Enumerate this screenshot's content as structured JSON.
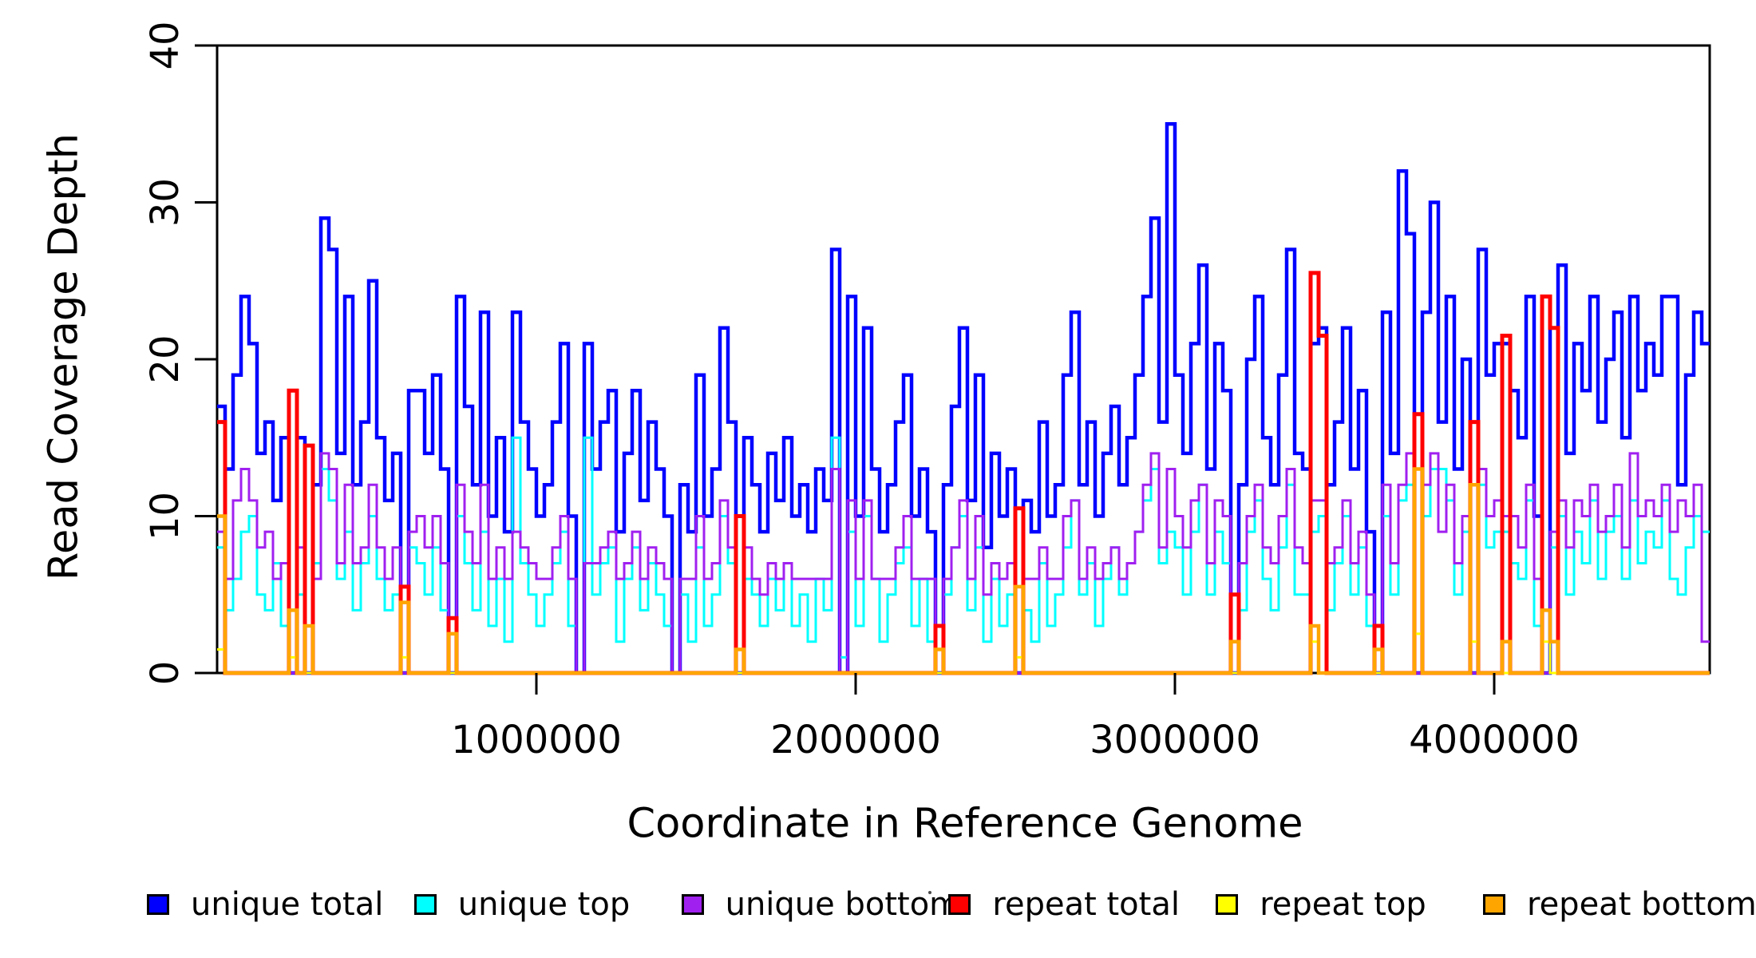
{
  "figure": {
    "y_axis": {
      "label": "Read Coverage Depth",
      "ticks": [
        0,
        10,
        20,
        30,
        40
      ],
      "tick_labels": [
        "0",
        "10",
        "20",
        "30",
        "40"
      ]
    },
    "x_axis": {
      "label": "Coordinate in Reference Genome",
      "ticks": [
        1000000,
        2000000,
        3000000,
        4000000
      ],
      "tick_labels": [
        "1000000",
        "2000000",
        "3000000",
        "4000000"
      ]
    },
    "legend": {
      "items": [
        {
          "label": "unique total",
          "color": "#0000FF"
        },
        {
          "label": "unique top",
          "color": "#00FFFF"
        },
        {
          "label": "unique bottom",
          "color": "#A020F0"
        },
        {
          "label": "repeat total",
          "color": "#FF0000"
        },
        {
          "label": "repeat top",
          "color": "#FFFF00"
        },
        {
          "label": "repeat bottom",
          "color": "#FFA500"
        }
      ]
    },
    "colors": {
      "axis": "#000000",
      "background": "#ffffff"
    }
  },
  "chart_data": {
    "type": "line",
    "step": true,
    "title": "",
    "xlabel": "Coordinate in Reference Genome",
    "ylabel": "Read Coverage Depth",
    "xlim": [
      0,
      4675000
    ],
    "ylim": [
      0,
      40
    ],
    "x_ticks": [
      1000000,
      2000000,
      3000000,
      4000000
    ],
    "y_ticks": [
      0,
      10,
      20,
      30,
      40
    ],
    "grid": false,
    "legend_position": "bottom",
    "n_bins": 187,
    "bin_size": 25000,
    "x_start": 0,
    "series": [
      {
        "name": "unique total",
        "color": "#0000FF",
        "line_width": 4.5,
        "values": [
          17,
          13,
          19,
          24,
          21,
          14,
          16,
          11,
          15,
          0,
          15,
          0,
          12,
          29,
          27,
          14,
          24,
          12,
          16,
          25,
          15,
          11,
          14,
          0,
          18,
          18,
          14,
          19,
          13,
          0,
          24,
          17,
          12,
          23,
          10,
          15,
          9,
          23,
          16,
          13,
          10,
          12,
          16,
          21,
          10,
          0,
          21,
          13,
          16,
          18,
          9,
          14,
          18,
          11,
          16,
          13,
          10,
          0,
          12,
          9,
          19,
          10,
          13,
          22,
          16,
          0,
          15,
          12,
          9,
          14,
          11,
          15,
          10,
          12,
          9,
          13,
          11,
          27,
          0,
          24,
          10,
          22,
          13,
          9,
          12,
          16,
          19,
          10,
          13,
          9,
          0,
          12,
          17,
          22,
          11,
          19,
          8,
          14,
          10,
          13,
          0,
          11,
          9,
          16,
          10,
          12,
          19,
          23,
          12,
          16,
          10,
          14,
          17,
          12,
          15,
          19,
          24,
          29,
          16,
          35,
          19,
          14,
          21,
          26,
          13,
          21,
          18,
          0,
          12,
          20,
          24,
          15,
          12,
          19,
          27,
          14,
          13,
          21,
          22,
          12,
          16,
          22,
          13,
          18,
          9,
          0,
          23,
          14,
          32,
          28,
          0,
          23,
          30,
          16,
          24,
          13,
          20,
          0,
          27,
          19,
          21,
          21,
          18,
          15,
          24,
          10,
          0,
          22,
          26,
          14,
          21,
          18,
          24,
          16,
          20,
          23,
          15,
          24,
          18,
          21,
          19,
          24,
          24,
          12,
          19,
          23,
          21
        ]
      },
      {
        "name": "unique top",
        "color": "#00FFFF",
        "line_width": 3,
        "values": [
          8,
          4,
          6,
          9,
          10,
          5,
          4,
          7,
          3,
          0,
          5,
          0,
          7,
          13,
          11,
          6,
          9,
          4,
          7,
          10,
          6,
          4,
          5,
          0,
          8,
          7,
          5,
          8,
          4,
          0,
          10,
          7,
          4,
          9,
          3,
          6,
          2,
          15,
          7,
          5,
          3,
          5,
          7,
          9,
          3,
          0,
          15,
          5,
          7,
          8,
          2,
          6,
          8,
          4,
          7,
          5,
          3,
          0,
          5,
          2,
          8,
          3,
          5,
          10,
          7,
          0,
          6,
          5,
          3,
          6,
          4,
          7,
          3,
          5,
          2,
          6,
          4,
          15,
          1,
          9,
          3,
          10,
          6,
          2,
          5,
          7,
          8,
          3,
          6,
          2,
          0,
          5,
          8,
          10,
          4,
          8,
          2,
          6,
          3,
          5,
          0,
          4,
          2,
          7,
          3,
          5,
          8,
          11,
          5,
          7,
          3,
          6,
          8,
          5,
          7,
          9,
          11,
          13,
          7,
          9,
          8,
          5,
          9,
          12,
          5,
          9,
          7,
          0,
          4,
          9,
          11,
          6,
          4,
          8,
          12,
          5,
          5,
          9,
          10,
          4,
          7,
          10,
          5,
          8,
          3,
          0,
          10,
          5,
          11,
          12,
          0,
          10,
          13,
          13,
          11,
          5,
          9,
          0,
          12,
          8,
          9,
          9,
          7,
          6,
          11,
          3,
          0,
          8,
          10,
          5,
          9,
          7,
          11,
          6,
          9,
          10,
          6,
          11,
          7,
          9,
          8,
          11,
          6,
          5,
          8,
          10,
          9
        ]
      },
      {
        "name": "unique bottom",
        "color": "#A020F0",
        "line_width": 3,
        "values": [
          9,
          6,
          11,
          13,
          11,
          8,
          9,
          6,
          7,
          0,
          8,
          0,
          6,
          14,
          13,
          7,
          12,
          7,
          8,
          12,
          8,
          6,
          8,
          0,
          9,
          10,
          8,
          10,
          7,
          0,
          12,
          9,
          7,
          12,
          6,
          8,
          6,
          9,
          8,
          7,
          6,
          6,
          8,
          10,
          6,
          0,
          7,
          7,
          8,
          9,
          6,
          7,
          9,
          6,
          8,
          7,
          6,
          0,
          6,
          6,
          10,
          6,
          7,
          11,
          8,
          0,
          8,
          6,
          5,
          7,
          6,
          7,
          6,
          6,
          6,
          6,
          6,
          13,
          0,
          11,
          6,
          11,
          6,
          6,
          6,
          8,
          10,
          6,
          6,
          6,
          0,
          6,
          8,
          11,
          6,
          10,
          5,
          7,
          6,
          7,
          0,
          6,
          6,
          8,
          6,
          6,
          10,
          11,
          6,
          8,
          6,
          7,
          8,
          6,
          7,
          9,
          12,
          14,
          8,
          13,
          10,
          8,
          11,
          12,
          7,
          11,
          10,
          0,
          7,
          10,
          12,
          8,
          7,
          10,
          13,
          8,
          7,
          11,
          11,
          7,
          8,
          11,
          7,
          9,
          5,
          0,
          12,
          7,
          12,
          14,
          0,
          12,
          14,
          9,
          12,
          7,
          10,
          0,
          13,
          10,
          11,
          10,
          10,
          8,
          12,
          6,
          0,
          9,
          11,
          8,
          11,
          10,
          12,
          9,
          10,
          12,
          8,
          14,
          10,
          11,
          10,
          12,
          9,
          11,
          10,
          12,
          2
        ]
      },
      {
        "name": "repeat total",
        "color": "#FF0000",
        "line_width": 5,
        "baseline": 0,
        "spikes": [
          [
            0,
            16
          ],
          [
            9,
            18
          ],
          [
            11,
            14.5
          ],
          [
            23,
            5.5
          ],
          [
            29,
            3.5
          ],
          [
            65,
            10
          ],
          [
            90,
            3
          ],
          [
            100,
            10.5
          ],
          [
            127,
            5
          ],
          [
            137,
            25.5
          ],
          [
            138,
            21.5
          ],
          [
            145,
            3
          ],
          [
            150,
            16.5
          ],
          [
            157,
            16
          ],
          [
            161,
            21.5
          ],
          [
            166,
            24
          ],
          [
            167,
            22
          ]
        ]
      },
      {
        "name": "repeat top",
        "color": "#FFFF00",
        "line_width": 3,
        "baseline": 0,
        "spikes": [
          [
            0,
            1.5
          ],
          [
            9,
            1
          ],
          [
            23,
            1
          ],
          [
            100,
            1
          ],
          [
            137,
            2
          ],
          [
            150,
            2.5
          ],
          [
            157,
            2
          ],
          [
            166,
            2
          ]
        ]
      },
      {
        "name": "repeat bottom",
        "color": "#FFA500",
        "line_width": 4.5,
        "baseline": 0,
        "spikes": [
          [
            0,
            10
          ],
          [
            9,
            4
          ],
          [
            11,
            3
          ],
          [
            23,
            4.5
          ],
          [
            29,
            2.5
          ],
          [
            65,
            1.5
          ],
          [
            90,
            1.5
          ],
          [
            100,
            5.5
          ],
          [
            127,
            2
          ],
          [
            137,
            3
          ],
          [
            145,
            1.5
          ],
          [
            150,
            13
          ],
          [
            157,
            12
          ],
          [
            161,
            2
          ],
          [
            166,
            4
          ],
          [
            167,
            2
          ]
        ]
      }
    ]
  }
}
